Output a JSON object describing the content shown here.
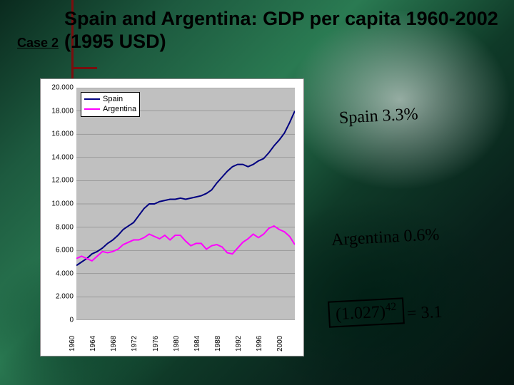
{
  "header": {
    "case_label": "Case 2",
    "title": "Spain and Argentina: GDP per capita 1960-2002 (1995 USD)"
  },
  "chart": {
    "type": "line",
    "background_color": "#c0c0c0",
    "plot_bg": "#c0c0c0",
    "grid_color": "#000000",
    "grid_width": 0.5,
    "border_color": "#888888",
    "ylim": [
      0,
      20000
    ],
    "ytick_step": 2000,
    "y_tick_labels": [
      "0",
      "2.000",
      "4.000",
      "6.000",
      "8.000",
      "10.000",
      "12.000",
      "14.000",
      "16.000",
      "18.000",
      "20.000"
    ],
    "x_years": [
      1960,
      1961,
      1962,
      1963,
      1964,
      1965,
      1966,
      1967,
      1968,
      1969,
      1970,
      1971,
      1972,
      1973,
      1974,
      1975,
      1976,
      1977,
      1978,
      1979,
      1980,
      1981,
      1982,
      1983,
      1984,
      1985,
      1986,
      1987,
      1988,
      1989,
      1990,
      1991,
      1992,
      1993,
      1994,
      1995,
      1996,
      1997,
      1998,
      1999,
      2000,
      2001,
      2002
    ],
    "x_tick_years": [
      1960,
      1964,
      1968,
      1972,
      1976,
      1980,
      1984,
      1988,
      1992,
      1996,
      2000
    ],
    "series": [
      {
        "name": "Spain",
        "color": "#000080",
        "line_width": 2,
        "values": [
          4700,
          5000,
          5300,
          5700,
          5900,
          6200,
          6600,
          6900,
          7300,
          7800,
          8100,
          8400,
          9000,
          9600,
          10000,
          10000,
          10200,
          10300,
          10400,
          10400,
          10500,
          10400,
          10500,
          10600,
          10700,
          10900,
          11200,
          11800,
          12300,
          12800,
          13200,
          13400,
          13400,
          13200,
          13400,
          13700,
          13900,
          14400,
          15000,
          15500,
          16100,
          17000,
          18000
        ]
      },
      {
        "name": "Argentina",
        "color": "#ff00ff",
        "line_width": 2,
        "values": [
          5300,
          5500,
          5300,
          5100,
          5500,
          5900,
          5800,
          5900,
          6100,
          6500,
          6700,
          6900,
          6900,
          7100,
          7400,
          7200,
          7000,
          7300,
          6900,
          7300,
          7300,
          6800,
          6400,
          6600,
          6600,
          6100,
          6400,
          6500,
          6300,
          5800,
          5700,
          6200,
          6700,
          7000,
          7400,
          7100,
          7400,
          7900,
          8100,
          7800,
          7600,
          7200,
          6500
        ]
      }
    ],
    "legend": {
      "position": "upper-left",
      "items": [
        "Spain",
        "Argentina"
      ]
    },
    "axis_label_fontsize": 10
  },
  "annotations": {
    "spain_label": "Spain 3.3%",
    "argentina_label": "Argentina 0.6%",
    "calc_base": "(1.027)",
    "calc_exp": "42",
    "calc_rhs": " = 3.1"
  },
  "corner_accent_color": "#7a0e0e"
}
